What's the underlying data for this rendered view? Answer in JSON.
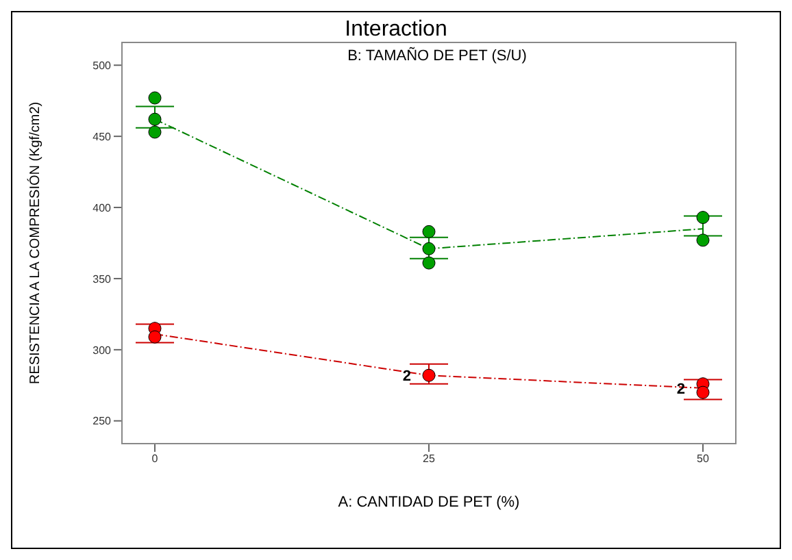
{
  "chart_data": {
    "type": "line",
    "title": "Interaction",
    "subtitle": "B: TAMAÑO DE PET (S/U)",
    "xlabel": "A: CANTIDAD DE PET (%)",
    "ylabel": "RESISTENCIA A LA COMPRESIÓN (Kgf/cm2)",
    "x": [
      0,
      25,
      50
    ],
    "series": [
      {
        "color": "#008000",
        "values": [
          462,
          371,
          385
        ],
        "errors": [
          [
            456,
            471
          ],
          [
            364,
            379
          ],
          [
            380,
            394
          ]
        ],
        "line_style": "dashed",
        "marker": "none"
      },
      {
        "color": "#cc0000",
        "values": [
          311,
          282,
          273
        ],
        "errors": [
          [
            305,
            318
          ],
          [
            276,
            290
          ],
          [
            265,
            279
          ]
        ],
        "line_style": "dashed",
        "marker": "none"
      },
      {
        "type": "scatter",
        "color": "#00a000",
        "x": [
          0,
          0,
          0,
          25,
          25,
          25,
          50,
          50
        ],
        "values": [
          477,
          462,
          453,
          383,
          371,
          361,
          393,
          377
        ],
        "marker": "circle"
      },
      {
        "type": "scatter",
        "color": "#ff0000",
        "x": [
          0,
          0,
          25,
          50,
          50
        ],
        "values": [
          315,
          309,
          282,
          276,
          270
        ],
        "marker": "circle"
      }
    ],
    "annotations": [
      {
        "text": "2",
        "x": 25,
        "y": 282
      },
      {
        "text": "2",
        "x": 50,
        "y": 273
      }
    ],
    "xlim": [
      -3,
      53
    ],
    "xticks": [
      0,
      25,
      50
    ],
    "ylim": [
      234,
      516
    ],
    "yticks": [
      250,
      300,
      350,
      400,
      450,
      500
    ],
    "grid": false,
    "legend": false
  }
}
